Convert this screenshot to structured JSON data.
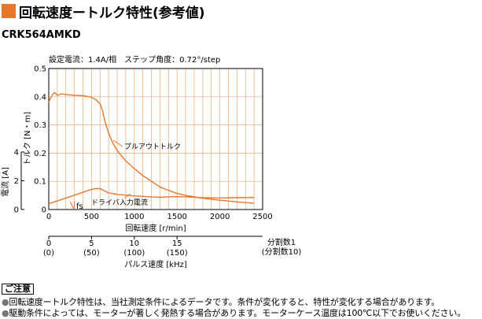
{
  "header": {
    "title": "回転速度ートルク特性(参考値)",
    "model": "CRK564AMKD"
  },
  "colors": {
    "accent": "#e8772e",
    "curve": "#e8772e",
    "grid": "#e9a877"
  },
  "notes": {
    "label": "ご注意",
    "items": [
      "回転速度ートルク特性は、当社測定条件によるデータです。条件が変化すると、特性が変化する場合があります。",
      "駆動条件によっては、モーターが著しく発熱する場合があります。モーターケース温度は100℃以下でお使いください。"
    ]
  },
  "chart_data": {
    "type": "line",
    "condition_text": "設定電流：1.4A/相　ステップ角度：0.72°/step",
    "xlabel": "回転速度 [r/min]",
    "xlim": [
      0,
      2500
    ],
    "x_ticks": [
      "0",
      "500",
      "1000",
      "1500",
      "2000",
      "2500"
    ],
    "ylabel": "トルク [N・m]",
    "ylim": [
      0,
      0.5
    ],
    "y_ticks": [
      "0",
      "0.1",
      "0.2",
      "0.3",
      "0.4",
      "0.5"
    ],
    "y2label": "電流 [A]",
    "y2lim": [
      0,
      4
    ],
    "y2_ticks": [
      "0",
      "2",
      "4"
    ],
    "pulse_axis": {
      "label": "パルス速度 [kHz]",
      "ticks": [
        {
          "speed": 0,
          "top": "0",
          "bottom": "(0)"
        },
        {
          "speed": 500,
          "top": "5",
          "bottom": "(50)"
        },
        {
          "speed": 1000,
          "top": "10",
          "bottom": "(100)"
        },
        {
          "speed": 1500,
          "top": "15",
          "bottom": "(150)"
        }
      ],
      "division_top": "分割数1",
      "division_bottom": "(分割数10)"
    },
    "fs_label": "fs",
    "grid": true,
    "series": [
      {
        "name": "プルアウトトルク",
        "axis": "torque",
        "x": [
          0,
          20,
          50,
          70,
          100,
          150,
          200,
          300,
          400,
          500,
          550,
          600,
          630,
          660,
          700,
          750,
          800,
          850,
          900,
          1000,
          1100,
          1200,
          1300,
          1400,
          1500,
          1600,
          1800,
          2000,
          2200,
          2400
        ],
        "y": [
          0.38,
          0.395,
          0.41,
          0.415,
          0.405,
          0.41,
          0.408,
          0.405,
          0.404,
          0.398,
          0.39,
          0.375,
          0.35,
          0.31,
          0.27,
          0.235,
          0.21,
          0.19,
          0.173,
          0.145,
          0.12,
          0.1,
          0.08,
          0.068,
          0.057,
          0.05,
          0.04,
          0.033,
          0.027,
          0.022
        ]
      },
      {
        "name": "ドライバ入力電流",
        "axis": "current",
        "x": [
          0,
          100,
          200,
          300,
          400,
          500,
          550,
          600,
          650,
          700,
          800,
          1000,
          1200,
          1300,
          1400,
          1500,
          1600,
          1700,
          1800,
          2000,
          2200,
          2400
        ],
        "y": [
          0.4,
          0.6,
          0.8,
          1.0,
          1.2,
          1.4,
          1.45,
          1.45,
          1.3,
          1.15,
          1.05,
          0.95,
          0.88,
          0.85,
          0.88,
          0.9,
          0.88,
          0.85,
          0.82,
          0.8,
          0.82,
          0.84
        ]
      }
    ]
  }
}
